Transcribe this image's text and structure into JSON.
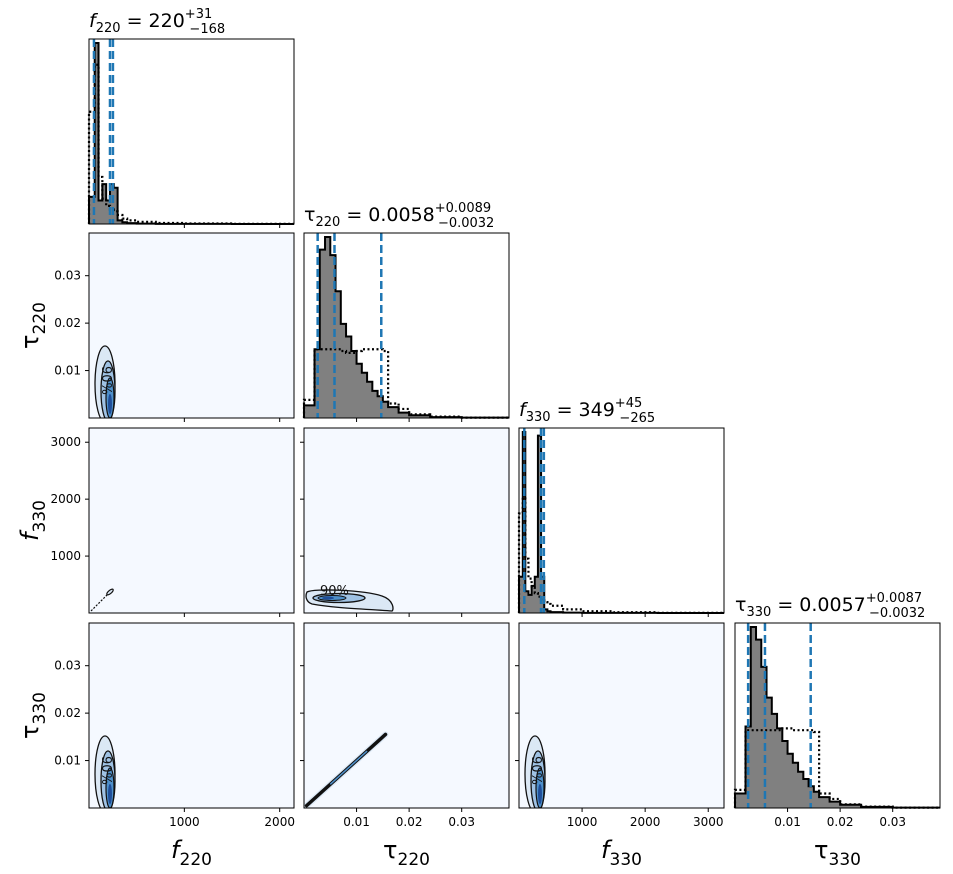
{
  "colors": {
    "hist_fill": "#808080",
    "hist_edge": "#000000",
    "prior_line": "#000000",
    "quantile_line": "#1f77b4",
    "panel_bg": "#f5f9ff",
    "contour_dark": "#1f4e99",
    "contour_mid": "#4e8fc9",
    "contour_light": "#dbe8f5"
  },
  "chart_data": {
    "type": "corner",
    "parameters": [
      {
        "key": "f220",
        "label_base": "f",
        "label_sub": "220",
        "range": [
          0,
          2150
        ],
        "ticks": [
          1000,
          2000
        ],
        "tick_labels": [
          "1000",
          "2000"
        ]
      },
      {
        "key": "tau220",
        "label_base": "τ",
        "label_sub": "220",
        "range": [
          0.0,
          0.039
        ],
        "ticks": [
          0.01,
          0.02,
          0.03
        ],
        "tick_labels": [
          "0.01",
          "0.02",
          "0.03"
        ]
      },
      {
        "key": "f330",
        "label_base": "f",
        "label_sub": "330",
        "range": [
          0,
          3250
        ],
        "ticks": [
          1000,
          2000,
          3000
        ],
        "tick_labels": [
          "1000",
          "2000",
          "3000"
        ]
      },
      {
        "key": "tau330",
        "label_base": "τ",
        "label_sub": "330",
        "range": [
          0.0,
          0.039
        ],
        "ticks": [
          0.01,
          0.02,
          0.03
        ],
        "tick_labels": [
          "0.01",
          "0.02",
          "0.03"
        ]
      }
    ],
    "titles": [
      {
        "base": "f",
        "sub": "220",
        "value": "220",
        "plus": "+31",
        "minus": "−168"
      },
      {
        "base": "τ",
        "sub": "220",
        "value": "0.0058",
        "plus": "+0.0089",
        "minus": "−0.0032"
      },
      {
        "base": "f",
        "sub": "330",
        "value": "349",
        "plus": "+45",
        "minus": "−265"
      },
      {
        "base": "τ",
        "sub": "330",
        "value": "0.0057",
        "plus": "+0.0087",
        "minus": "−0.0032"
      }
    ],
    "diagonal": [
      {
        "bins": [
          0,
          60,
          100,
          140,
          180,
          220,
          260,
          300,
          350,
          400,
          500,
          700,
          1000,
          1500,
          2150
        ],
        "posterior": [
          0.15,
          1.0,
          0.13,
          0.22,
          0.13,
          0.22,
          0.2,
          0.02,
          0.01,
          0.005,
          0.002,
          0.001,
          0.0005,
          0.0002
        ],
        "prior": [
          0.62,
          0.88,
          0.26,
          0.14,
          0.1,
          0.08,
          0.07,
          0.05,
          0.03,
          0.02,
          0.012,
          0.006,
          0.003,
          0.001
        ],
        "quantiles": [
          52,
          220,
          251
        ]
      },
      {
        "bins": [
          0.0,
          0.002,
          0.003,
          0.004,
          0.005,
          0.006,
          0.007,
          0.008,
          0.009,
          0.01,
          0.011,
          0.012,
          0.013,
          0.014,
          0.015,
          0.016,
          0.018,
          0.02,
          0.024,
          0.03,
          0.039
        ],
        "posterior": [
          0.07,
          0.38,
          0.93,
          1.0,
          0.9,
          0.7,
          0.52,
          0.45,
          0.37,
          0.3,
          0.25,
          0.2,
          0.15,
          0.12,
          0.09,
          0.06,
          0.03,
          0.015,
          0.005,
          0.002
        ],
        "prior": [
          0.1,
          0.38,
          0.38,
          0.38,
          0.38,
          0.38,
          0.37,
          0.36,
          0.36,
          0.37,
          0.38,
          0.38,
          0.38,
          0.38,
          0.37,
          0.08,
          0.05,
          0.02,
          0.008,
          0.002
        ],
        "quantiles": [
          0.0026,
          0.0058,
          0.0147
        ]
      },
      {
        "bins": [
          0,
          60,
          100,
          150,
          200,
          250,
          300,
          350,
          400,
          450,
          500,
          700,
          1000,
          1500,
          2200,
          3250
        ],
        "posterior": [
          0.2,
          1.0,
          0.12,
          0.1,
          0.15,
          0.2,
          0.98,
          0.2,
          0.02,
          0.01,
          0.005,
          0.002,
          0.001,
          0.0005,
          0.0002
        ],
        "prior": [
          0.55,
          0.65,
          0.3,
          0.19,
          0.14,
          0.11,
          0.09,
          0.07,
          0.06,
          0.05,
          0.04,
          0.02,
          0.01,
          0.004,
          0.001
        ],
        "quantiles": [
          84,
          349,
          394
        ]
      },
      {
        "bins": [
          0.0,
          0.002,
          0.003,
          0.004,
          0.005,
          0.006,
          0.007,
          0.008,
          0.009,
          0.01,
          0.011,
          0.012,
          0.013,
          0.014,
          0.015,
          0.016,
          0.018,
          0.02,
          0.024,
          0.03,
          0.039
        ],
        "posterior": [
          0.08,
          0.45,
          1.0,
          0.93,
          0.78,
          0.61,
          0.52,
          0.44,
          0.37,
          0.3,
          0.25,
          0.2,
          0.16,
          0.12,
          0.09,
          0.06,
          0.035,
          0.018,
          0.006,
          0.002
        ],
        "prior": [
          0.1,
          0.43,
          0.43,
          0.43,
          0.43,
          0.43,
          0.43,
          0.43,
          0.44,
          0.44,
          0.43,
          0.43,
          0.43,
          0.43,
          0.42,
          0.08,
          0.05,
          0.02,
          0.008,
          0.002
        ],
        "quantiles": [
          0.0025,
          0.0057,
          0.0144
        ]
      }
    ],
    "contour_levels": [
      "90%"
    ],
    "contours": [
      {
        "row": 1,
        "col": 0,
        "center": [
          200,
          0.0065
        ],
        "spread": [
          130,
          0.006
        ],
        "label": "90%",
        "label_shown": true
      },
      {
        "row": 2,
        "col": 0,
        "center": [
          300,
          420
        ],
        "spread": [
          90,
          60
        ],
        "label": "90%",
        "label_shown": false,
        "thin": true
      },
      {
        "row": 2,
        "col": 1,
        "center": [
          0.008,
          280
        ],
        "spread": [
          0.008,
          160
        ],
        "label": "90%",
        "label_shown": true
      },
      {
        "row": 3,
        "col": 0,
        "center": [
          200,
          0.0065
        ],
        "spread": [
          130,
          0.006
        ],
        "label": "90%",
        "label_shown": true
      },
      {
        "row": 3,
        "col": 1,
        "center": [
          0.0078,
          0.0078
        ],
        "spread": [
          0.0075,
          0.0075
        ],
        "label": "90%",
        "label_shown": false,
        "diagonal": true
      },
      {
        "row": 3,
        "col": 2,
        "center": [
          200,
          0.0065
        ],
        "spread": [
          130,
          0.006
        ],
        "label": "90%",
        "label_shown": true
      }
    ]
  }
}
